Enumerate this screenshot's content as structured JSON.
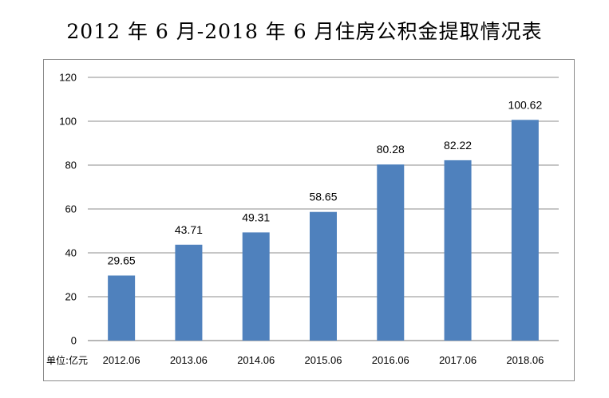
{
  "chart_data": {
    "type": "bar",
    "title": "2012 年 6 月-2018 年 6 月住房公积金提取情况表",
    "unit_label": "单位:亿元",
    "categories": [
      "2012.06",
      "2013.06",
      "2014.06",
      "2015.06",
      "2016.06",
      "2017.06",
      "2018.06"
    ],
    "values": [
      29.65,
      43.71,
      49.31,
      58.65,
      80.28,
      82.22,
      100.62
    ],
    "data_labels": [
      "29.65",
      "43.71",
      "49.31",
      "58.65",
      "80.28",
      "82.22",
      "100.62"
    ],
    "ylim": [
      0,
      120
    ],
    "yticks": [
      0,
      20,
      40,
      60,
      80,
      100,
      120
    ],
    "grid": true,
    "bar_color": "#4f81bd",
    "grid_color": "#8c8c8c"
  }
}
